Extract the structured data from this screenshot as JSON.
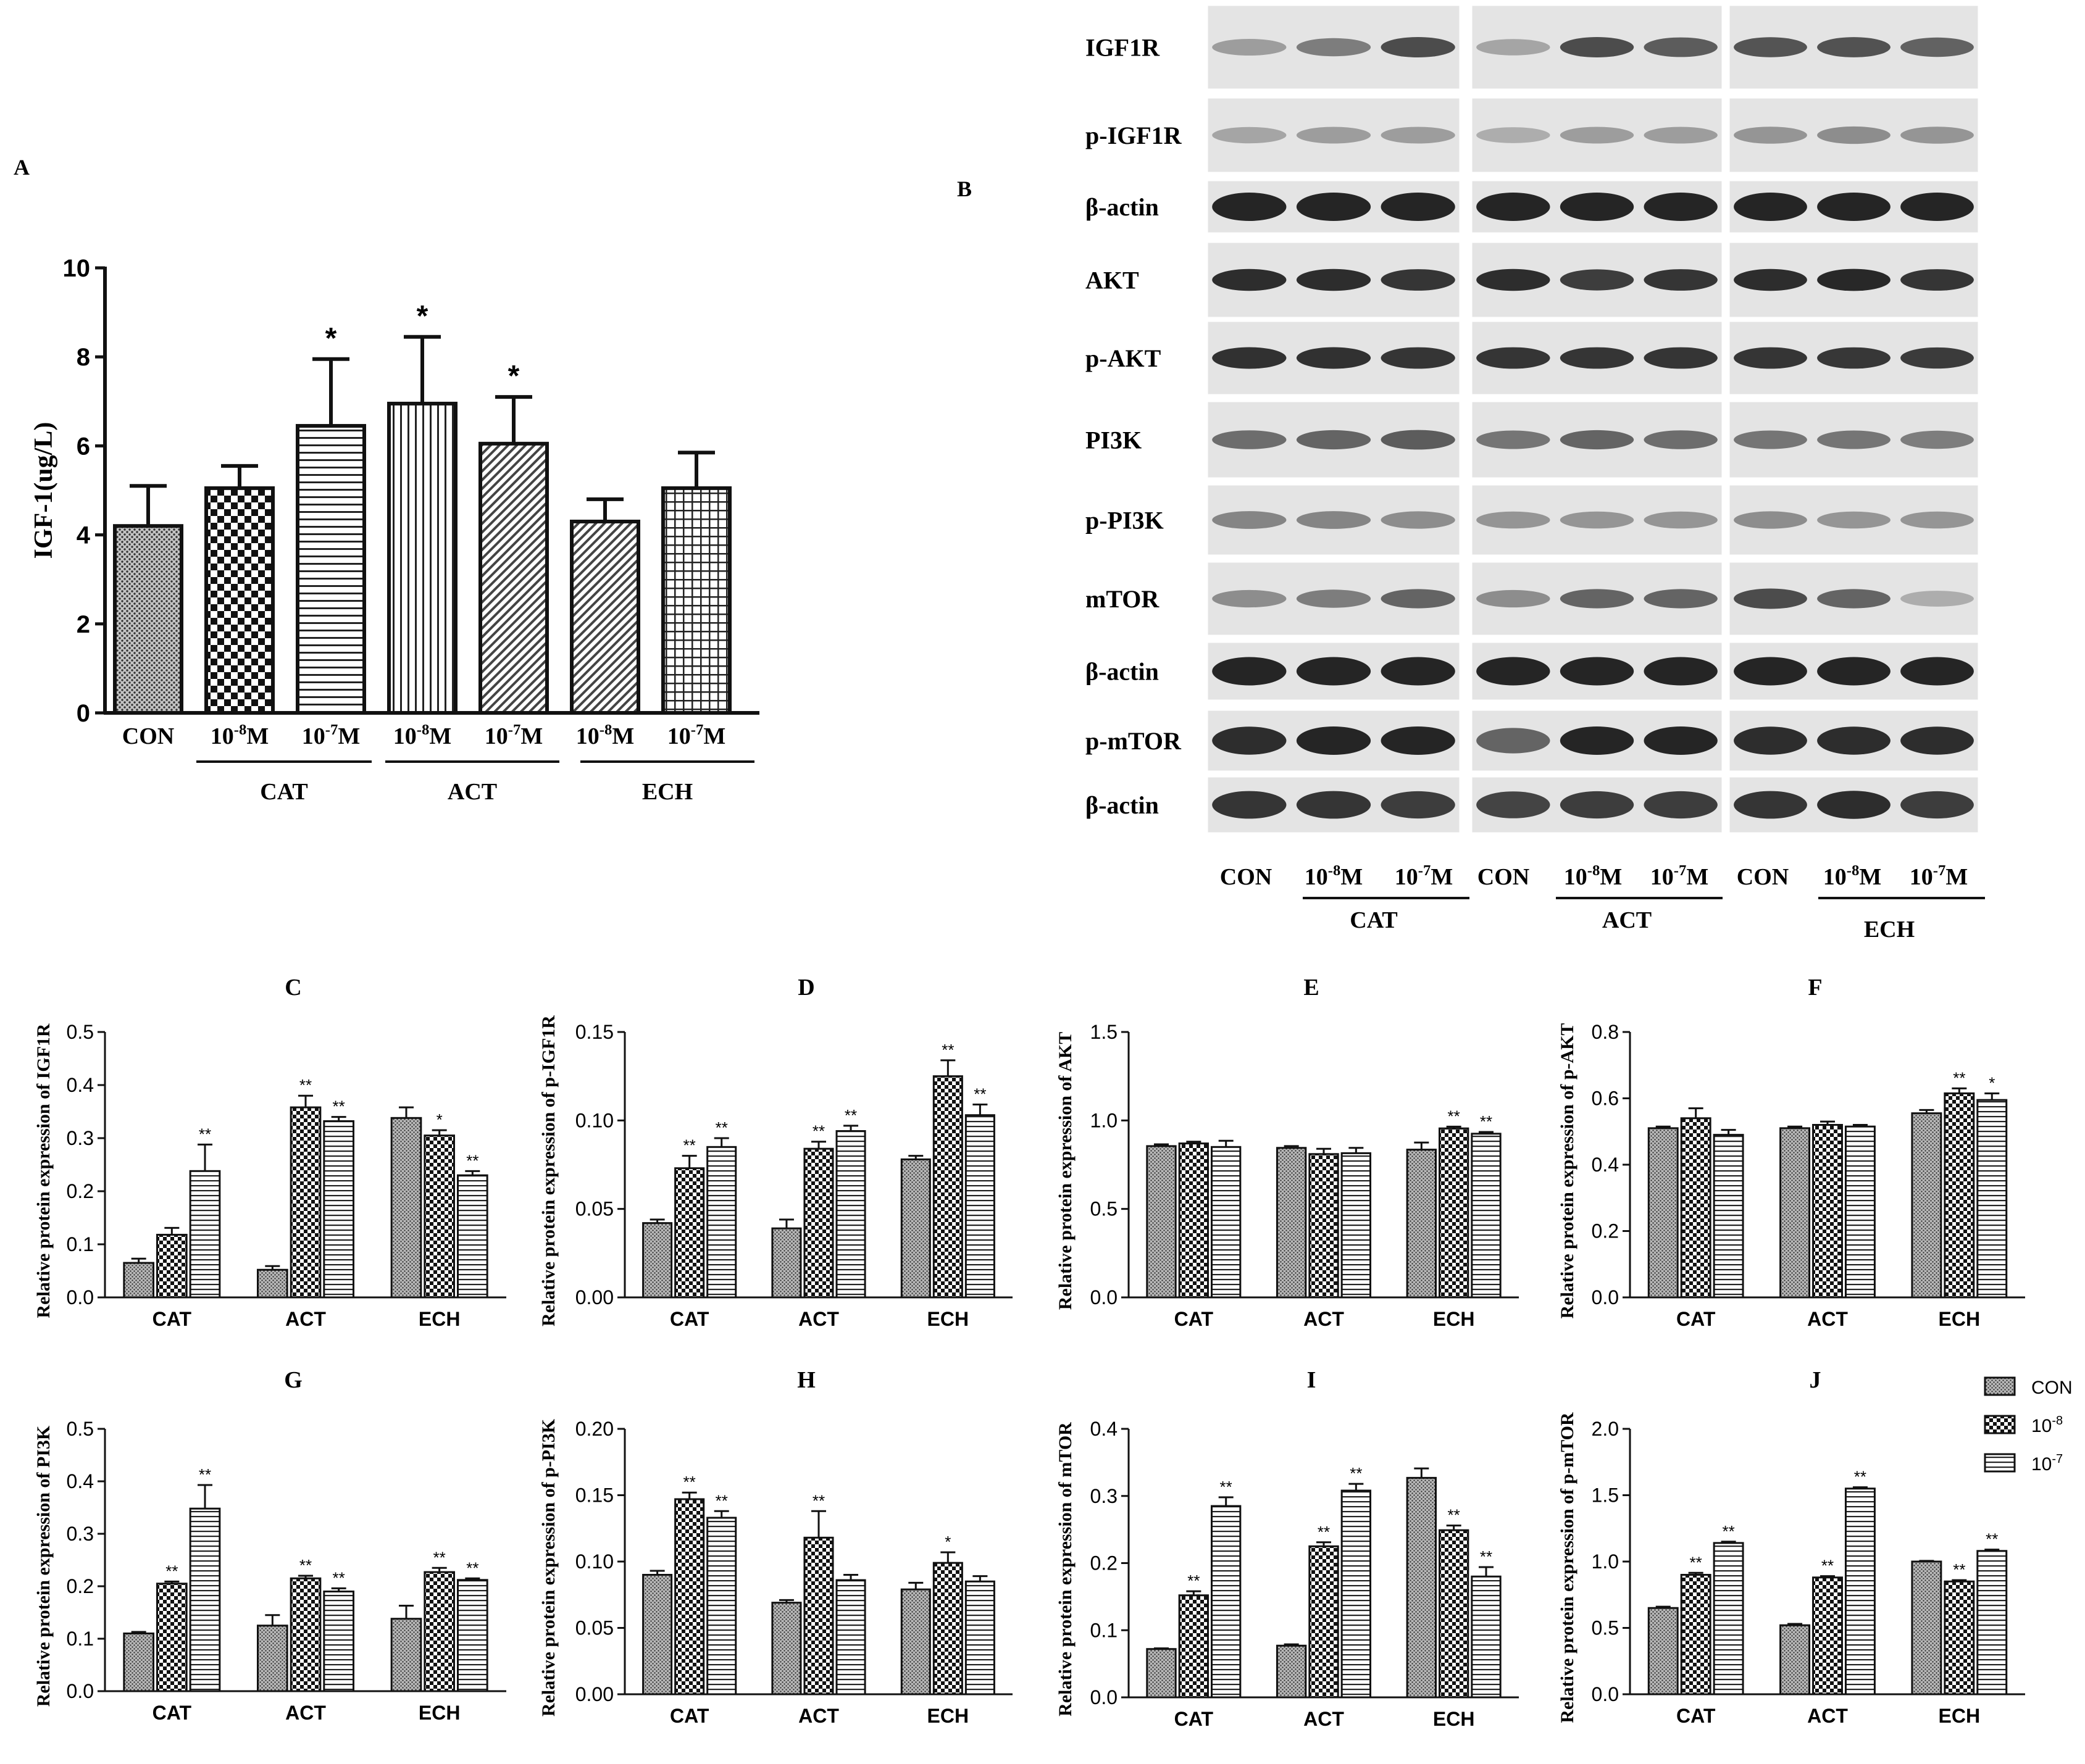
{
  "figure": {
    "panel_a_label": "A",
    "panel_b_label": "B"
  },
  "colors": {
    "bar_fill": "#ffffff",
    "bar_stroke": "#111111",
    "axis": "#111111",
    "con_fill": "#8a8a8a",
    "blot_bg": "#e4e4e4",
    "band": "#1a1a1a"
  },
  "chart_data": [
    {
      "id": "A",
      "type": "bar",
      "title": "",
      "ylabel": "IGF-1(ug/L)",
      "ylim": [
        0,
        10
      ],
      "yticks": [
        "0",
        "2",
        "4",
        "6",
        "8",
        "10"
      ],
      "categories": [
        "CON",
        "10-8M",
        "10-7M",
        "10-8M",
        "10-7M",
        "10-8M",
        "10-7M"
      ],
      "category_labels": [
        {
          "base": "CON",
          "exp": ""
        },
        {
          "base": "10",
          "exp": "-8",
          "unit": "M"
        },
        {
          "base": "10",
          "exp": "-7",
          "unit": "M"
        },
        {
          "base": "10",
          "exp": "-8",
          "unit": "M"
        },
        {
          "base": "10",
          "exp": "-7",
          "unit": "M"
        },
        {
          "base": "10",
          "exp": "-8",
          "unit": "M"
        },
        {
          "base": "10",
          "exp": "-7",
          "unit": "M"
        }
      ],
      "groups": [
        "CAT",
        "ACT",
        "ECH"
      ],
      "values": [
        4.2,
        5.05,
        6.45,
        6.95,
        6.05,
        4.3,
        5.05
      ],
      "errors": [
        0.9,
        0.5,
        1.5,
        1.5,
        1.05,
        0.5,
        0.8
      ],
      "patterns": [
        "dots",
        "checker",
        "hlines",
        "vlines",
        "diag",
        "diag",
        "grid"
      ],
      "significance": [
        "",
        "",
        "*",
        "*",
        "*",
        "",
        ""
      ]
    },
    {
      "id": "C",
      "type": "bar",
      "title": "C",
      "ylabel": "Relative protein expression of IGF1R",
      "ylim": [
        0,
        0.5
      ],
      "yticks": [
        "0.0",
        "0.1",
        "0.2",
        "0.3",
        "0.4",
        "0.5"
      ],
      "categories": [
        "CAT",
        "ACT",
        "ECH"
      ],
      "series": [
        {
          "name": "CON",
          "values": [
            0.065,
            0.052,
            0.338
          ],
          "errors": [
            0.008,
            0.007,
            0.02
          ],
          "sig": [
            "",
            "",
            ""
          ]
        },
        {
          "name": "10-8",
          "values": [
            0.118,
            0.358,
            0.305
          ],
          "errors": [
            0.013,
            0.022,
            0.01
          ],
          "sig": [
            "",
            "**",
            "*"
          ]
        },
        {
          "name": "10-7",
          "values": [
            0.238,
            0.332,
            0.23
          ],
          "errors": [
            0.05,
            0.008,
            0.008
          ],
          "sig": [
            "**",
            "**",
            "**"
          ]
        }
      ]
    },
    {
      "id": "D",
      "type": "bar",
      "title": "D",
      "ylabel": "Relative protein expression of p-IGF1R",
      "ylim": [
        0,
        0.15
      ],
      "yticks": [
        "0.00",
        "0.05",
        "0.10",
        "0.15"
      ],
      "categories": [
        "CAT",
        "ACT",
        "ECH"
      ],
      "series": [
        {
          "name": "CON",
          "values": [
            0.042,
            0.039,
            0.078
          ],
          "errors": [
            0.002,
            0.005,
            0.002
          ],
          "sig": [
            "",
            "",
            ""
          ]
        },
        {
          "name": "10-8",
          "values": [
            0.073,
            0.084,
            0.125
          ],
          "errors": [
            0.007,
            0.004,
            0.009
          ],
          "sig": [
            "**",
            "**",
            "**"
          ]
        },
        {
          "name": "10-7",
          "values": [
            0.085,
            0.094,
            0.103
          ],
          "errors": [
            0.005,
            0.003,
            0.006
          ],
          "sig": [
            "**",
            "**",
            "**"
          ]
        }
      ]
    },
    {
      "id": "E",
      "type": "bar",
      "title": "E",
      "ylabel": "Relative protein expression of AKT",
      "ylim": [
        0,
        1.5
      ],
      "yticks": [
        "0.0",
        "0.5",
        "1.0",
        "1.5"
      ],
      "categories": [
        "CAT",
        "ACT",
        "ECH"
      ],
      "series": [
        {
          "name": "CON",
          "values": [
            0.855,
            0.845,
            0.835
          ],
          "errors": [
            0.01,
            0.01,
            0.04
          ],
          "sig": [
            "",
            "",
            ""
          ]
        },
        {
          "name": "10-8",
          "values": [
            0.87,
            0.81,
            0.955
          ],
          "errors": [
            0.01,
            0.03,
            0.01
          ],
          "sig": [
            "",
            "",
            "**"
          ]
        },
        {
          "name": "10-7",
          "values": [
            0.85,
            0.815,
            0.925
          ],
          "errors": [
            0.035,
            0.03,
            0.01
          ],
          "sig": [
            "",
            "",
            "**"
          ]
        }
      ]
    },
    {
      "id": "F",
      "type": "bar",
      "title": "F",
      "ylabel": "Relative protein expression of p-AKT",
      "ylim": [
        0,
        0.8
      ],
      "yticks": [
        "0.0",
        "0.2",
        "0.4",
        "0.6",
        "0.8"
      ],
      "categories": [
        "CAT",
        "ACT",
        "ECH"
      ],
      "series": [
        {
          "name": "CON",
          "values": [
            0.51,
            0.51,
            0.555
          ],
          "errors": [
            0.005,
            0.005,
            0.01
          ],
          "sig": [
            "",
            "",
            ""
          ]
        },
        {
          "name": "10-8",
          "values": [
            0.54,
            0.52,
            0.615
          ],
          "errors": [
            0.03,
            0.01,
            0.015
          ],
          "sig": [
            "",
            "",
            "**"
          ]
        },
        {
          "name": "10-7",
          "values": [
            0.49,
            0.515,
            0.595
          ],
          "errors": [
            0.015,
            0.005,
            0.02
          ],
          "sig": [
            "",
            "",
            "*"
          ]
        }
      ]
    },
    {
      "id": "G",
      "type": "bar",
      "title": "G",
      "ylabel": "Relative protein expression of PI3K",
      "ylim": [
        0,
        0.5
      ],
      "yticks": [
        "0.0",
        "0.1",
        "0.2",
        "0.3",
        "0.4",
        "0.5"
      ],
      "categories": [
        "CAT",
        "ACT",
        "ECH"
      ],
      "series": [
        {
          "name": "CON",
          "values": [
            0.11,
            0.125,
            0.138
          ],
          "errors": [
            0.003,
            0.02,
            0.025
          ],
          "sig": [
            "",
            "",
            ""
          ]
        },
        {
          "name": "10-8",
          "values": [
            0.205,
            0.215,
            0.227
          ],
          "errors": [
            0.004,
            0.005,
            0.008
          ],
          "sig": [
            "**",
            "**",
            "**"
          ]
        },
        {
          "name": "10-7",
          "values": [
            0.348,
            0.19,
            0.212
          ],
          "errors": [
            0.045,
            0.006,
            0.003
          ],
          "sig": [
            "**",
            "**",
            "**"
          ]
        }
      ]
    },
    {
      "id": "H",
      "type": "bar",
      "title": "H",
      "ylabel": "Relative protein expression of p-PI3K",
      "ylim": [
        0,
        0.2
      ],
      "yticks": [
        "0.00",
        "0.05",
        "0.10",
        "0.15",
        "0.20"
      ],
      "categories": [
        "CAT",
        "ACT",
        "ECH"
      ],
      "series": [
        {
          "name": "CON",
          "values": [
            0.09,
            0.069,
            0.079
          ],
          "errors": [
            0.003,
            0.002,
            0.005
          ],
          "sig": [
            "",
            "",
            ""
          ]
        },
        {
          "name": "10-8",
          "values": [
            0.147,
            0.118,
            0.099
          ],
          "errors": [
            0.005,
            0.02,
            0.008
          ],
          "sig": [
            "**",
            "**",
            "*"
          ]
        },
        {
          "name": "10-7",
          "values": [
            0.133,
            0.086,
            0.085
          ],
          "errors": [
            0.005,
            0.004,
            0.004
          ],
          "sig": [
            "**",
            "",
            ""
          ]
        }
      ]
    },
    {
      "id": "I",
      "type": "bar",
      "title": "I",
      "ylabel": "Relative protein expression of mTOR",
      "ylim": [
        0,
        0.4
      ],
      "yticks": [
        "0.0",
        "0.1",
        "0.2",
        "0.3",
        "0.4"
      ],
      "categories": [
        "CAT",
        "ACT",
        "ECH"
      ],
      "series": [
        {
          "name": "CON",
          "values": [
            0.072,
            0.077,
            0.327
          ],
          "errors": [
            0.001,
            0.002,
            0.014
          ],
          "sig": [
            "",
            "",
            ""
          ]
        },
        {
          "name": "10-8",
          "values": [
            0.152,
            0.225,
            0.249
          ],
          "errors": [
            0.006,
            0.006,
            0.007
          ],
          "sig": [
            "**",
            "**",
            "**"
          ]
        },
        {
          "name": "10-7",
          "values": [
            0.285,
            0.308,
            0.18
          ],
          "errors": [
            0.013,
            0.01,
            0.014
          ],
          "sig": [
            "**",
            "**",
            "**"
          ]
        }
      ]
    },
    {
      "id": "J",
      "type": "bar",
      "title": "J",
      "ylabel": "Relative protein expression of p-mTOR",
      "ylim": [
        0,
        2.0
      ],
      "yticks": [
        "0.0",
        "0.5",
        "1.0",
        "1.5",
        "2.0"
      ],
      "categories": [
        "CAT",
        "ACT",
        "ECH"
      ],
      "series": [
        {
          "name": "CON",
          "values": [
            0.65,
            0.52,
            1.0
          ],
          "errors": [
            0.01,
            0.01,
            0.005
          ],
          "sig": [
            "",
            "",
            ""
          ]
        },
        {
          "name": "10-8",
          "values": [
            0.9,
            0.88,
            0.85
          ],
          "errors": [
            0.015,
            0.01,
            0.01
          ],
          "sig": [
            "**",
            "**",
            "**"
          ]
        },
        {
          "name": "10-7",
          "values": [
            1.14,
            1.55,
            1.08
          ],
          "errors": [
            0.01,
            0.01,
            0.01
          ],
          "sig": [
            "**",
            "**",
            "**"
          ]
        }
      ]
    }
  ],
  "legend": [
    {
      "label": "CON",
      "base": "CON",
      "exp": "",
      "pattern": "dots"
    },
    {
      "label": "10-8",
      "base": "10",
      "exp": "-8",
      "pattern": "checker"
    },
    {
      "label": "10-7",
      "base": "10",
      "exp": "-7",
      "pattern": "hlines"
    }
  ],
  "blot": {
    "labels": [
      "IGF1R",
      "p-IGF1R",
      "β-actin",
      "AKT",
      "p-AKT",
      "PI3K",
      "p-PI3K",
      "mTOR",
      "β-actin",
      "p-mTOR",
      "β-actin"
    ],
    "intensities": [
      [
        0.25,
        0.45,
        0.75,
        0.2,
        0.75,
        0.65,
        0.7,
        0.72,
        0.62
      ],
      [
        0.2,
        0.25,
        0.25,
        0.15,
        0.25,
        0.25,
        0.3,
        0.35,
        0.3
      ],
      [
        1,
        1,
        1,
        1,
        1,
        1,
        1,
        1,
        1
      ],
      [
        0.95,
        0.95,
        0.9,
        0.95,
        0.85,
        0.9,
        0.95,
        0.98,
        0.9
      ],
      [
        0.92,
        0.92,
        0.9,
        0.9,
        0.9,
        0.9,
        0.9,
        0.88,
        0.86
      ],
      [
        0.55,
        0.6,
        0.65,
        0.5,
        0.6,
        0.55,
        0.5,
        0.5,
        0.45
      ],
      [
        0.4,
        0.4,
        0.35,
        0.3,
        0.3,
        0.3,
        0.35,
        0.3,
        0.3
      ],
      [
        0.35,
        0.45,
        0.6,
        0.35,
        0.6,
        0.6,
        0.75,
        0.6,
        0.15
      ],
      [
        1,
        1,
        1,
        1,
        1,
        1,
        1,
        1,
        1
      ],
      [
        0.95,
        1,
        1,
        0.6,
        1,
        1,
        0.95,
        0.95,
        0.95
      ],
      [
        0.9,
        0.9,
        0.85,
        0.8,
        0.85,
        0.85,
        0.9,
        0.95,
        0.85
      ]
    ],
    "lanes": [
      {
        "base": "CON",
        "exp": "",
        "unit": ""
      },
      {
        "base": "10",
        "exp": "-8",
        "unit": "M"
      },
      {
        "base": "10",
        "exp": "-7",
        "unit": "M"
      },
      {
        "base": "CON",
        "exp": "",
        "unit": ""
      },
      {
        "base": "10",
        "exp": "-8",
        "unit": "M"
      },
      {
        "base": "10",
        "exp": "-7",
        "unit": "M"
      },
      {
        "base": "CON",
        "exp": "",
        "unit": ""
      },
      {
        "base": "10",
        "exp": "-8",
        "unit": "M"
      },
      {
        "base": "10",
        "exp": "-7",
        "unit": "M"
      }
    ],
    "groups": [
      "CAT",
      "ACT",
      "ECH"
    ]
  }
}
